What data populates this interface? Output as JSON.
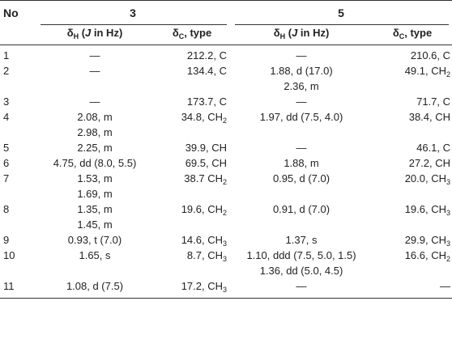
{
  "header": {
    "no_label": "No",
    "compound_a": "3",
    "compound_b": "5",
    "delta_h": "δH (J in Hz)",
    "delta_c": "δC, type"
  },
  "rows": [
    {
      "no": "1",
      "h3": [
        "—"
      ],
      "c3": "212.2, C",
      "h5": [
        "—"
      ],
      "c5": "210.6, C"
    },
    {
      "no": "2",
      "h3": [
        "—"
      ],
      "c3": "134.4, C",
      "h5": [
        "1.88, d (17.0)",
        "2.36, m"
      ],
      "c5": "49.1, CH2"
    },
    {
      "no": "3",
      "h3": [
        "—"
      ],
      "c3": "173.7, C",
      "h5": [
        "—"
      ],
      "c5": "71.7, C"
    },
    {
      "no": "4",
      "h3": [
        "2.08, m",
        "2.98, m"
      ],
      "c3": "34.8, CH2",
      "h5": [
        "1.97, dd (7.5, 4.0)"
      ],
      "c5": "38.4, CH"
    },
    {
      "no": "5",
      "h3": [
        "2.25, m"
      ],
      "c3": "39.9, CH",
      "h5": [
        "—"
      ],
      "c5": "46.1, C"
    },
    {
      "no": "6",
      "h3": [
        "4.75, dd (8.0, 5.5)"
      ],
      "c3": "69.5, CH",
      "h5": [
        "1.88, m"
      ],
      "c5": "27.2, CH"
    },
    {
      "no": "7",
      "h3": [
        "1.53, m",
        "1.69, m"
      ],
      "c3": "38.7 CH2",
      "h5": [
        "0.95, d (7.0)"
      ],
      "c5": "20.0, CH3"
    },
    {
      "no": "8",
      "h3": [
        "1.35, m",
        "1.45, m"
      ],
      "c3": "19.6, CH2",
      "h5": [
        "0.91, d (7.0)"
      ],
      "c5": "19.6, CH3"
    },
    {
      "no": "9",
      "h3": [
        "0.93, t (7.0)"
      ],
      "c3": "14.6, CH3",
      "h5": [
        "1.37, s"
      ],
      "c5": "29.9, CH3"
    },
    {
      "no": "10",
      "h3": [
        "1.65, s"
      ],
      "c3": "8.7, CH3",
      "h5": [
        "1.10, ddd (7.5, 5.0, 1.5)",
        "1.36, dd (5.0, 4.5)"
      ],
      "c5": "16.6, CH2"
    },
    {
      "no": "11",
      "h3": [
        "1.08, d (7.5)"
      ],
      "c3": "17.2, CH3",
      "h5": [
        "—"
      ],
      "c5": "—"
    }
  ]
}
